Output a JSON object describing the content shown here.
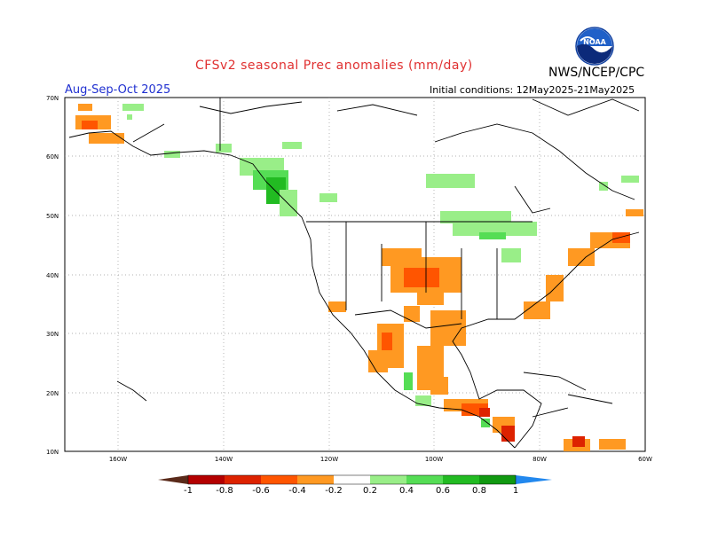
{
  "header": {
    "title": "CFSv2 seasonal Prec anomalies (mm/day)",
    "agency": "NWS/NCEP/CPC",
    "season": "Aug-Sep-Oct 2025",
    "initial_conditions": "Initial conditions: 12May2025-21May2025",
    "logo_text": "NOAA"
  },
  "axes": {
    "lat_labels": [
      "70N",
      "60N",
      "50N",
      "40N",
      "30N",
      "20N",
      "10N"
    ],
    "lon_labels": [
      "160W",
      "140W",
      "120W",
      "100W",
      "80W",
      "60W"
    ]
  },
  "colorbar": {
    "labels": [
      "-1",
      "-0.8",
      "-0.6",
      "-0.4",
      "-0.2",
      "0.2",
      "0.4",
      "0.6",
      "0.8",
      "1"
    ],
    "colors": [
      "#5a2a1a",
      "#b40000",
      "#dd2200",
      "#ff5500",
      "#ff9922",
      "#ffffff",
      "#99ee88",
      "#55dd55",
      "#22bb22",
      "#119911",
      "#2288ee"
    ]
  },
  "icons": {
    "logo": "noaa-logo"
  }
}
